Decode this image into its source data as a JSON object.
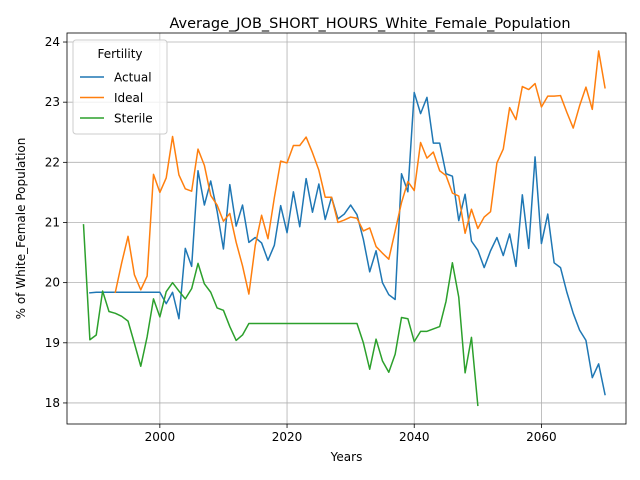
{
  "chart_data": {
    "type": "line",
    "title": "Average_JOB_SHORT_HOURS_White_Female_Population",
    "xlabel": "Years",
    "ylabel": "% of White_Female Population",
    "xlim": [
      1985.4,
      2073.3
    ],
    "ylim": [
      17.65,
      24.15
    ],
    "x_ticks": [
      2000,
      2020,
      2040,
      2060
    ],
    "y_ticks": [
      18,
      19,
      20,
      21,
      22,
      23,
      24
    ],
    "grid": true,
    "legend": {
      "title": "Fertility",
      "placement": "top-left"
    },
    "series": [
      {
        "name": "Actual",
        "color": "#1f77b4",
        "x": [
          1989,
          1990,
          1991,
          1992,
          1993,
          1994,
          1995,
          1996,
          1997,
          1998,
          1999,
          2000,
          2001,
          2002,
          2003,
          2004,
          2005,
          2006,
          2007,
          2008,
          2009,
          2010,
          2011,
          2012,
          2013,
          2014,
          2015,
          2016,
          2017,
          2018,
          2019,
          2020,
          2021,
          2022,
          2023,
          2024,
          2025,
          2026,
          2027,
          2028,
          2029,
          2030,
          2031,
          2032,
          2033,
          2034,
          2035,
          2036,
          2037,
          2038,
          2039,
          2040,
          2041,
          2042,
          2043,
          2044,
          2045,
          2046,
          2047,
          2048,
          2049,
          2050,
          2051,
          2052,
          2053,
          2054,
          2055,
          2056,
          2057,
          2058,
          2059,
          2060,
          2061,
          2062,
          2063,
          2064,
          2065,
          2066,
          2067,
          2068,
          2069,
          2070
        ],
        "values": [
          19.83,
          19.84,
          19.84,
          19.84,
          19.84,
          19.84,
          19.84,
          19.84,
          19.84,
          19.84,
          19.84,
          19.84,
          19.65,
          19.84,
          19.4,
          20.57,
          20.27,
          21.86,
          21.29,
          21.69,
          21.19,
          20.56,
          21.63,
          20.94,
          21.29,
          20.67,
          20.75,
          20.66,
          20.37,
          20.62,
          21.28,
          20.83,
          21.51,
          20.93,
          21.73,
          21.17,
          21.64,
          21.05,
          21.42,
          21.06,
          21.14,
          21.29,
          21.13,
          20.72,
          20.18,
          20.53,
          20.0,
          19.8,
          19.72,
          21.81,
          21.51,
          23.16,
          22.81,
          23.08,
          22.32,
          22.32,
          21.81,
          21.77,
          21.03,
          21.47,
          20.69,
          20.54,
          20.25,
          20.53,
          20.75,
          20.45,
          20.81,
          20.27,
          21.46,
          20.57,
          22.09,
          20.65,
          21.14,
          20.33,
          20.25,
          19.84,
          19.49,
          19.21,
          19.04,
          18.42,
          18.65,
          18.14
        ]
      },
      {
        "name": "Ideal",
        "color": "#ff7f0e",
        "x": [
          1993,
          1994,
          1995,
          1996,
          1997,
          1998,
          1999,
          2000,
          2001,
          2002,
          2003,
          2004,
          2005,
          2006,
          2007,
          2008,
          2009,
          2010,
          2011,
          2012,
          2013,
          2014,
          2015,
          2016,
          2017,
          2018,
          2019,
          2020,
          2021,
          2022,
          2023,
          2024,
          2025,
          2026,
          2027,
          2028,
          2029,
          2030,
          2031,
          2032,
          2033,
          2034,
          2035,
          2036,
          2037,
          2038,
          2039,
          2040,
          2041,
          2042,
          2043,
          2044,
          2045,
          2046,
          2047,
          2048,
          2049,
          2050,
          2051,
          2052,
          2053,
          2054,
          2055,
          2056,
          2057,
          2058,
          2059,
          2060,
          2061,
          2062,
          2063,
          2064,
          2065,
          2066,
          2067,
          2068,
          2069,
          2070
        ],
        "values": [
          19.84,
          20.33,
          20.77,
          20.13,
          19.88,
          20.11,
          21.8,
          21.5,
          21.74,
          22.43,
          21.79,
          21.56,
          21.52,
          22.22,
          21.95,
          21.45,
          21.29,
          21.02,
          21.15,
          20.67,
          20.28,
          19.81,
          20.62,
          21.12,
          20.73,
          21.41,
          22.02,
          21.99,
          22.28,
          22.28,
          22.42,
          22.16,
          21.87,
          21.42,
          21.42,
          21.0,
          21.04,
          21.09,
          21.07,
          20.86,
          20.91,
          20.6,
          20.49,
          20.39,
          20.86,
          21.33,
          21.68,
          21.53,
          22.33,
          22.07,
          22.17,
          21.86,
          21.78,
          21.49,
          21.44,
          20.82,
          21.22,
          20.9,
          21.09,
          21.18,
          21.99,
          22.22,
          22.91,
          22.71,
          23.26,
          23.21,
          23.31,
          22.92,
          23.1,
          23.1,
          23.11,
          22.83,
          22.57,
          22.94,
          23.25,
          22.88,
          23.85,
          23.24
        ]
      },
      {
        "name": "Sterile",
        "color": "#2ca02c",
        "x": [
          1988,
          1989,
          1990,
          1991,
          1992,
          1993,
          1994,
          1995,
          1996,
          1997,
          1998,
          1999,
          2000,
          2001,
          2002,
          2003,
          2004,
          2005,
          2006,
          2007,
          2008,
          2009,
          2010,
          2011,
          2012,
          2013,
          2014,
          2015,
          2016,
          2017,
          2018,
          2019,
          2020,
          2021,
          2022,
          2023,
          2024,
          2025,
          2026,
          2027,
          2028,
          2029,
          2030,
          2031,
          2032,
          2033,
          2034,
          2035,
          2036,
          2037,
          2038,
          2039,
          2040,
          2041,
          2042,
          2043,
          2044,
          2045,
          2046,
          2047,
          2048,
          2049,
          2050
        ],
        "values": [
          20.96,
          19.05,
          19.13,
          19.86,
          19.52,
          19.49,
          19.44,
          19.36,
          18.99,
          18.61,
          19.1,
          19.73,
          19.43,
          19.85,
          20.0,
          19.86,
          19.73,
          19.9,
          20.32,
          19.98,
          19.84,
          19.58,
          19.54,
          19.27,
          19.04,
          19.13,
          19.32,
          19.32,
          19.32,
          19.32,
          19.32,
          19.32,
          19.32,
          19.32,
          19.32,
          19.32,
          19.32,
          19.32,
          19.32,
          19.32,
          19.32,
          19.32,
          19.32,
          19.32,
          19.0,
          18.56,
          19.06,
          18.7,
          18.51,
          18.81,
          19.42,
          19.4,
          19.02,
          19.19,
          19.19,
          19.23,
          19.27,
          19.69,
          20.33,
          19.76,
          18.5,
          19.09,
          17.96
        ]
      }
    ]
  }
}
